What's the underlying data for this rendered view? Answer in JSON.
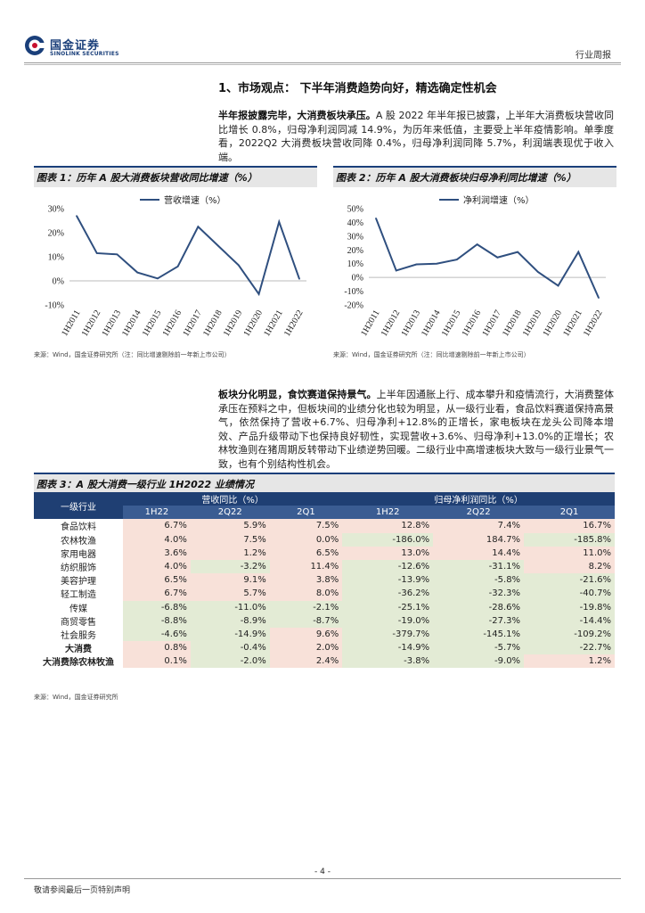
{
  "header": {
    "logo_cn": "国金证券",
    "logo_en": "SINOLINK SECURITIES",
    "doc_type": "行业周报"
  },
  "section": {
    "title": "1、市场观点： 下半年消费趋势向好，精选确定性机会"
  },
  "para1": {
    "bold": "半年报披露完毕，大消费板块承压。",
    "text": "A 股 2022 年半年报已披露，上半年大消费板块营收同比增长 0.8%，归母净利润同减 14.9%，为历年来低值，主要受上半年疫情影响。单季度看，2022Q2 大消费板块营收同降 0.4%，归母净利润同降 5.7%，利润端表现优于收入端。"
  },
  "para2": {
    "bold": "板块分化明显，食饮赛道保持景气。",
    "text": "上半年因通胀上行、成本攀升和疫情流行，大消费整体承压在预料之中，但板块间的业绩分化也较为明显，从一级行业看，食品饮料赛道保持高景气，依然保持了营收+6.7%、归母净利+12.8%的正增长，家电板块在龙头公司降本增效、产品升级带动下也保持良好韧性，实现营收+3.6%、归母净利+13.0%的正增长；农林牧渔则在猪周期反转带动下业绩逆势回暖。二级行业中高增速板块大致与一级行业景气一致，也有个别结构性机会。"
  },
  "fig1": {
    "title": "图表 1：历年 A 股大消费板块营收同比增速（%）",
    "source": "来源：Wind，国金证券研究所（注：同比增速剔除前一年新上市公司）"
  },
  "fig2": {
    "title": "图表 2：历年 A 股大消费板块归母净利同比增速（%）",
    "source": "来源：Wind，国金证券研究所（注：同比增速剔除前一年新上市公司）"
  },
  "chart_data": [
    {
      "type": "line",
      "title": "",
      "categories": [
        "1H2011",
        "1H2012",
        "1H2013",
        "1H2014",
        "1H2015",
        "1H2016",
        "1H2017",
        "1H2018",
        "1H2019",
        "1H2020",
        "1H2021",
        "1H2022"
      ],
      "series": [
        {
          "name": "营收增速（%）",
          "values": [
            27.0,
            11.5,
            11.0,
            3.5,
            1.0,
            6.0,
            22.5,
            14.5,
            6.5,
            -5.5,
            24.5,
            0.8
          ]
        }
      ],
      "ylim": [
        -10,
        30
      ],
      "yticks": [
        "-10%",
        "0%",
        "10%",
        "20%",
        "30%"
      ],
      "ytick_values": [
        -10,
        0,
        10,
        20,
        30
      ],
      "grid": false,
      "legend_position": "top"
    },
    {
      "type": "line",
      "title": "",
      "categories": [
        "1H2011",
        "1H2012",
        "1H2013",
        "1H2014",
        "1H2015",
        "1H2016",
        "1H2017",
        "1H2018",
        "1H2019",
        "1H2020",
        "1H2021",
        "1H2022"
      ],
      "series": [
        {
          "name": "净利润增速（%）",
          "values": [
            43.0,
            5.0,
            9.5,
            10.0,
            13.0,
            24.0,
            14.5,
            18.5,
            4.0,
            -6.0,
            18.5,
            -14.9
          ]
        }
      ],
      "ylim": [
        -20,
        50
      ],
      "yticks": [
        "-20%",
        "-10%",
        "0%",
        "10%",
        "20%",
        "30%",
        "40%",
        "50%"
      ],
      "ytick_values": [
        -20,
        -10,
        0,
        10,
        20,
        30,
        40,
        50
      ],
      "grid": false,
      "legend_position": "top"
    }
  ],
  "table3": {
    "title": "图表 3：A 股大消费一级行业 1H2022 业绩情况",
    "head_industry": "一级行业",
    "group1": "营收同比（%）",
    "group2": "归母净利润同比（%）",
    "cols": [
      "1H22",
      "2Q22",
      "2Q1"
    ],
    "cols_b": [
      "1H22",
      "2Q22",
      "2Q1"
    ],
    "rows": [
      {
        "name": "食品饮料",
        "v": [
          "6.7%",
          "5.9%",
          "7.5%",
          "12.8%",
          "7.4%",
          "16.7%"
        ],
        "c": [
          "r",
          "r",
          "r",
          "r",
          "r",
          "r"
        ]
      },
      {
        "name": "农林牧渔",
        "v": [
          "4.0%",
          "7.5%",
          "0.0%",
          "-186.0%",
          "184.7%",
          "-185.8%"
        ],
        "c": [
          "r",
          "r",
          "r",
          "g",
          "r",
          "g"
        ]
      },
      {
        "name": "家用电器",
        "v": [
          "3.6%",
          "1.2%",
          "6.5%",
          "13.0%",
          "14.4%",
          "11.0%"
        ],
        "c": [
          "r",
          "r",
          "r",
          "r",
          "r",
          "r"
        ]
      },
      {
        "name": "纺织服饰",
        "v": [
          "4.0%",
          "-3.2%",
          "11.4%",
          "-12.6%",
          "-31.1%",
          "8.2%"
        ],
        "c": [
          "r",
          "g",
          "r",
          "g",
          "g",
          "r"
        ]
      },
      {
        "name": "美容护理",
        "v": [
          "6.5%",
          "9.1%",
          "3.8%",
          "-13.9%",
          "-5.8%",
          "-21.6%"
        ],
        "c": [
          "r",
          "r",
          "r",
          "g",
          "g",
          "g"
        ]
      },
      {
        "name": "轻工制造",
        "v": [
          "6.7%",
          "5.7%",
          "8.0%",
          "-36.2%",
          "-32.3%",
          "-40.7%"
        ],
        "c": [
          "r",
          "r",
          "r",
          "g",
          "g",
          "g"
        ]
      },
      {
        "name": "传媒",
        "v": [
          "-6.8%",
          "-11.0%",
          "-2.1%",
          "-25.1%",
          "-28.6%",
          "-19.8%"
        ],
        "c": [
          "g",
          "g",
          "g",
          "g",
          "g",
          "g"
        ]
      },
      {
        "name": "商贸零售",
        "v": [
          "-8.8%",
          "-8.9%",
          "-8.7%",
          "-19.0%",
          "-27.3%",
          "-14.4%"
        ],
        "c": [
          "g",
          "g",
          "g",
          "g",
          "g",
          "g"
        ]
      },
      {
        "name": "社会服务",
        "v": [
          "-4.6%",
          "-14.9%",
          "9.6%",
          "-379.7%",
          "-145.1%",
          "-109.2%"
        ],
        "c": [
          "g",
          "g",
          "r",
          "g",
          "g",
          "g"
        ]
      },
      {
        "name": "大消费",
        "v": [
          "0.8%",
          "-0.4%",
          "2.0%",
          "-14.9%",
          "-5.7%",
          "-22.7%"
        ],
        "c": [
          "r",
          "g",
          "r",
          "g",
          "g",
          "g"
        ],
        "bold": true
      },
      {
        "name": "大消费除农林牧渔",
        "v": [
          "0.1%",
          "-2.0%",
          "2.4%",
          "-3.8%",
          "-9.0%",
          "1.2%"
        ],
        "c": [
          "r",
          "g",
          "r",
          "g",
          "g",
          "r"
        ],
        "bold": true
      }
    ],
    "source": "来源：Wind，国金证券研究所"
  },
  "footer": {
    "page": "- 4 -",
    "note": "敬请参阅最后一页特别声明"
  },
  "colors": {
    "brand": "#1a3f7a",
    "line": "#2f4f7f",
    "pos": "#f8e1d9",
    "neg": "#e3ebd5"
  }
}
